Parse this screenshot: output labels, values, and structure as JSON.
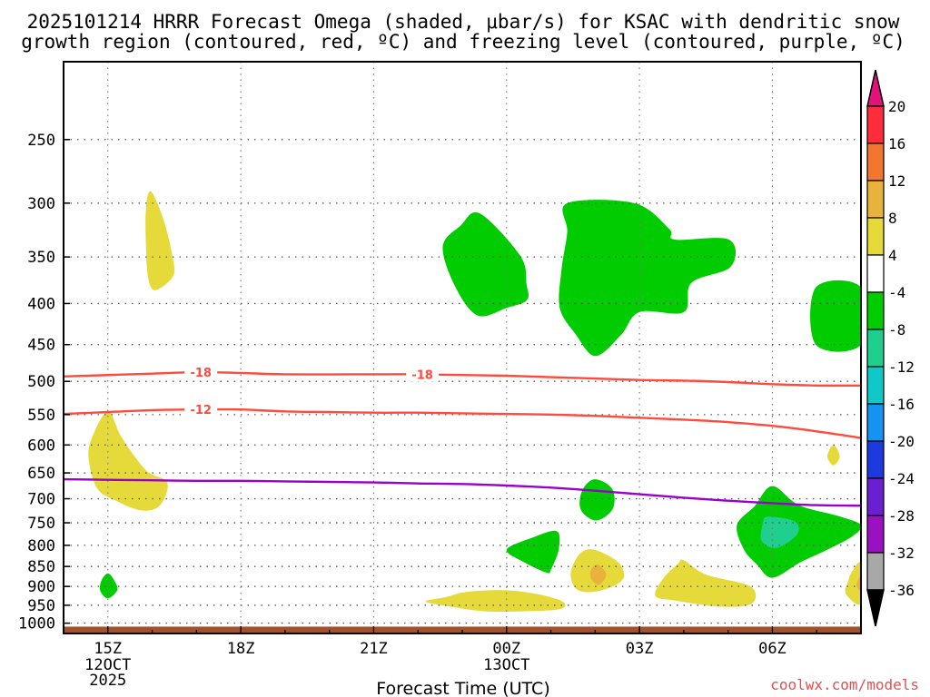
{
  "title_line1": "2025101214 HRRR Forecast Omega (shaded, μbar/s) for KSAC with dendritic snow",
  "title_line2": "growth region (contoured, red, ºC) and freezing level (contoured, purple, ºC)",
  "xlabel": "Forecast Time (UTC)",
  "credit": "coolwx.com/models",
  "chart_data": {
    "type": "contour-time-height",
    "station": "KSAC",
    "run": "2025101214",
    "model": "HRRR",
    "x_unit": "hours since 2025-10-12 14Z",
    "x_range": [
      0,
      18
    ],
    "y_unit": "hPa",
    "y_range": [
      1030,
      200
    ],
    "y_ticks": [
      250,
      300,
      350,
      400,
      450,
      500,
      550,
      600,
      650,
      700,
      750,
      800,
      850,
      900,
      950,
      1000
    ],
    "x_ticks": [
      {
        "hour": 1,
        "label": "15Z",
        "date1": "12OCT",
        "date2": "2025"
      },
      {
        "hour": 4,
        "label": "18Z"
      },
      {
        "hour": 7,
        "label": "21Z"
      },
      {
        "hour": 10,
        "label": "00Z",
        "date1": "13OCT"
      },
      {
        "hour": 13,
        "label": "03Z"
      },
      {
        "hour": 16,
        "label": "06Z"
      }
    ],
    "colorbar": {
      "labels": [
        "20",
        "16",
        "12",
        "8",
        "4",
        "-4",
        "-8",
        "-12",
        "-16",
        "-20",
        "-24",
        "-28",
        "-32",
        "-36"
      ],
      "segment_colors": [
        "#ff2d3c",
        "#f27530",
        "#e8b23c",
        "#e6da3a",
        "#ffffff",
        "#00cc00",
        "#1fcf8e",
        "#10c8c8",
        "#1493f0",
        "#1d3ae0",
        "#6a1fd0",
        "#9b10c0",
        "#a8a8a8"
      ],
      "top_color": "#e3127a",
      "bottom_color": "#000000"
    },
    "omega_regions": [
      {
        "name": "yellow-upper-15z",
        "color": "#e6da3a",
        "points": [
          [
            1.97,
            290
          ],
          [
            2.26,
            315
          ],
          [
            2.46,
            350
          ],
          [
            2.47,
            370
          ],
          [
            2.07,
            385
          ],
          [
            1.91,
            372
          ],
          [
            1.86,
            340
          ],
          [
            1.86,
            305
          ]
        ]
      },
      {
        "name": "yellow-lower-15z",
        "color": "#e6da3a",
        "points": [
          [
            1.0,
            545
          ],
          [
            1.31,
            587
          ],
          [
            1.86,
            645
          ],
          [
            2.34,
            668
          ],
          [
            2.18,
            713
          ],
          [
            1.76,
            724
          ],
          [
            1.16,
            703
          ],
          [
            0.76,
            680
          ],
          [
            0.57,
            627
          ],
          [
            0.63,
            590
          ]
        ]
      },
      {
        "name": "green-900-15z",
        "color": "#00cc00",
        "points": [
          [
            1.0,
            867
          ],
          [
            1.15,
            886
          ],
          [
            1.21,
            910
          ],
          [
            1.0,
            931
          ],
          [
            0.83,
            912
          ],
          [
            0.85,
            886
          ]
        ]
      },
      {
        "name": "yellow-950",
        "color": "#e6da3a",
        "points": [
          [
            8.17,
            940
          ],
          [
            8.64,
            928
          ],
          [
            9.11,
            914
          ],
          [
            10.0,
            910
          ],
          [
            10.81,
            923
          ],
          [
            11.29,
            942
          ],
          [
            11.22,
            960
          ],
          [
            10.59,
            966
          ],
          [
            9.55,
            967
          ],
          [
            8.8,
            955
          ]
        ]
      },
      {
        "name": "green-350-00z",
        "color": "#00cc00",
        "points": [
          [
            9.4,
            309
          ],
          [
            10.31,
            349
          ],
          [
            10.45,
            378
          ],
          [
            10.46,
            396
          ],
          [
            10.0,
            405
          ],
          [
            9.35,
            414
          ],
          [
            8.85,
            382
          ],
          [
            8.56,
            340
          ],
          [
            8.96,
            320
          ]
        ]
      },
      {
        "name": "green-350-03z",
        "color": "#00cc00",
        "points": [
          [
            11.37,
            300
          ],
          [
            12.89,
            300
          ],
          [
            13.67,
            323
          ],
          [
            13.8,
            333
          ],
          [
            15.02,
            333
          ],
          [
            15.06,
            360
          ],
          [
            14.17,
            377
          ],
          [
            14.0,
            410
          ],
          [
            13.0,
            410
          ],
          [
            12.58,
            438
          ],
          [
            12.0,
            465
          ],
          [
            11.55,
            436
          ],
          [
            11.2,
            405
          ],
          [
            11.24,
            363
          ],
          [
            11.37,
            326
          ]
        ]
      },
      {
        "name": "green-400-right",
        "color": "#00cc00",
        "points": [
          [
            16.98,
            382
          ],
          [
            18.0,
            382
          ],
          [
            18.0,
            450
          ],
          [
            16.98,
            450
          ]
        ]
      },
      {
        "name": "yellow-620-right",
        "color": "#e6da3a",
        "points": [
          [
            17.38,
            600
          ],
          [
            17.52,
            620
          ],
          [
            17.38,
            636
          ],
          [
            17.24,
            620
          ]
        ]
      },
      {
        "name": "green-700-0130z",
        "color": "#00cc00",
        "points": [
          [
            11.98,
            662
          ],
          [
            12.38,
            680
          ],
          [
            12.4,
            720
          ],
          [
            12.03,
            745
          ],
          [
            11.68,
            723
          ],
          [
            11.7,
            685
          ]
        ]
      },
      {
        "name": "green-820-0030z",
        "color": "#00cc00",
        "points": [
          [
            10.0,
            810
          ],
          [
            10.6,
            782
          ],
          [
            11.13,
            768
          ],
          [
            11.18,
            808
          ],
          [
            11.0,
            858
          ],
          [
            10.9,
            865
          ],
          [
            10.4,
            840
          ]
        ]
      },
      {
        "name": "yellow-870-0130z",
        "color": "#e6da3a",
        "points": [
          [
            11.97,
            810
          ],
          [
            12.5,
            838
          ],
          [
            12.65,
            875
          ],
          [
            12.4,
            900
          ],
          [
            11.9,
            915
          ],
          [
            11.56,
            905
          ],
          [
            11.45,
            865
          ],
          [
            11.65,
            820
          ]
        ]
      },
      {
        "name": "orange-870-0130z",
        "color": "#e8b23c",
        "points": [
          [
            12.06,
            846
          ],
          [
            12.25,
            870
          ],
          [
            12.08,
            896
          ],
          [
            11.91,
            880
          ],
          [
            11.91,
            858
          ]
        ]
      },
      {
        "name": "yellow-910-0430z",
        "color": "#e6da3a",
        "points": [
          [
            14.0,
            835
          ],
          [
            14.5,
            870
          ],
          [
            15.5,
            900
          ],
          [
            15.54,
            945
          ],
          [
            14.84,
            954
          ],
          [
            13.8,
            937
          ],
          [
            13.36,
            925
          ],
          [
            13.52,
            882
          ],
          [
            13.87,
            843
          ]
        ]
      },
      {
        "name": "green-760-06z",
        "color": "#00cc00",
        "points": [
          [
            16.0,
            675
          ],
          [
            16.6,
            713
          ],
          [
            17.5,
            736
          ],
          [
            18.0,
            755
          ],
          [
            17.8,
            780
          ],
          [
            17.2,
            812
          ],
          [
            16.63,
            840
          ],
          [
            16.0,
            878
          ],
          [
            15.65,
            845
          ],
          [
            15.36,
            810
          ],
          [
            15.2,
            755
          ],
          [
            15.6,
            715
          ]
        ]
      },
      {
        "name": "teal-775-06z",
        "color": "#1fcf8e",
        "points": [
          [
            15.9,
            737
          ],
          [
            16.5,
            747
          ],
          [
            16.56,
            775
          ],
          [
            16.1,
            806
          ],
          [
            15.76,
            790
          ],
          [
            15.78,
            753
          ]
        ]
      },
      {
        "name": "yellow-900-right",
        "color": "#e6da3a",
        "points": [
          [
            18.0,
            843
          ],
          [
            18.0,
            945
          ],
          [
            17.66,
            920
          ],
          [
            17.7,
            890
          ],
          [
            17.8,
            862
          ]
        ]
      },
      {
        "name": "orange-900-right",
        "color": "#e8b23c",
        "points": [
          [
            18.0,
            875
          ],
          [
            18.0,
            912
          ],
          [
            17.9,
            895
          ]
        ]
      }
    ],
    "isotherms": [
      {
        "label": "-18",
        "color": "#ff4a3d",
        "label_at_hours": [
          3.1,
          8.1
        ],
        "x": [
          0,
          2,
          3,
          4,
          5,
          7,
          8,
          9,
          10,
          11,
          12,
          13,
          14,
          15,
          16,
          17,
          18
        ],
        "y": [
          493,
          489,
          487,
          488,
          490,
          490,
          490,
          491,
          492,
          494,
          496,
          498,
          499,
          501,
          504,
          506,
          506
        ]
      },
      {
        "label": "-12",
        "color": "#ff4a3d",
        "label_at_hours": [
          3.1
        ],
        "x": [
          0,
          1,
          2,
          3,
          4,
          5,
          6,
          7,
          8,
          9,
          10,
          11,
          12,
          13,
          14,
          15,
          16,
          17,
          18
        ],
        "y": [
          549,
          546,
          543,
          542,
          542,
          545,
          546,
          547,
          547,
          548,
          549,
          550,
          552,
          555,
          558,
          562,
          568,
          577,
          588
        ]
      },
      {
        "label": "0",
        "color": "#9900cc",
        "label_at_hours": [],
        "x": [
          0,
          1,
          2,
          3,
          4,
          5,
          6,
          7,
          8,
          9,
          10,
          11,
          12,
          13,
          14,
          15,
          16,
          17,
          18
        ],
        "y": [
          662,
          663,
          664,
          665,
          665,
          666,
          667,
          668,
          670,
          671,
          674,
          678,
          684,
          691,
          698,
          704,
          709,
          713,
          714
        ]
      }
    ],
    "terrain": {
      "color": "#a0522d",
      "surface_hpa": 1010
    }
  }
}
